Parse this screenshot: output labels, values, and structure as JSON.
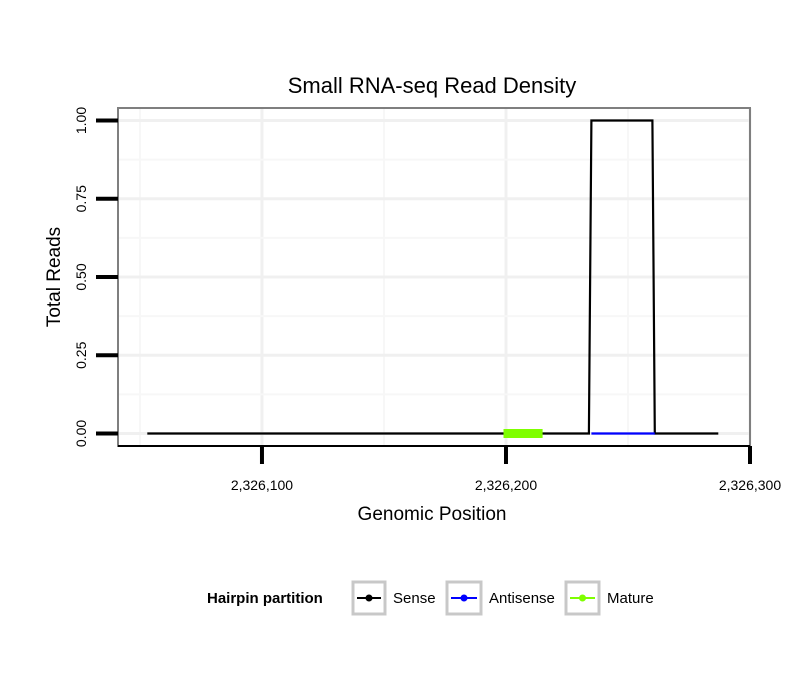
{
  "chart_data": {
    "type": "line",
    "title": "Small RNA-seq Read Density",
    "xlabel": "Genomic Position",
    "ylabel": "Total Reads",
    "xlim": [
      2326041,
      2326300
    ],
    "ylim": [
      -0.04,
      1.04
    ],
    "x_ticks": [
      2326100,
      2326200,
      2326300
    ],
    "x_tick_labels": [
      "2,326,100",
      "2,326,200",
      "2,326,300"
    ],
    "y_ticks": [
      0,
      0.25,
      0.5,
      0.75,
      1.0
    ],
    "y_tick_labels": [
      "0.00",
      "0.25",
      "0.50",
      "0.75",
      "1.00"
    ],
    "grid": true,
    "legend_position": "bottom",
    "legend_title": "Hairpin partition",
    "series": [
      {
        "name": "Sense",
        "color": "#000000",
        "x": [
          2326053,
          2326234,
          2326235,
          2326260,
          2326261,
          2326287
        ],
        "y": [
          0,
          0,
          1,
          1,
          0,
          0
        ]
      },
      {
        "name": "Antisense",
        "color": "#0000ff",
        "x": [
          2326235,
          2326261
        ],
        "y": [
          0,
          0
        ]
      },
      {
        "name": "Mature",
        "color": "#7fff00",
        "x": [
          2326199,
          2326215
        ],
        "y": [
          0,
          0
        ]
      }
    ]
  }
}
